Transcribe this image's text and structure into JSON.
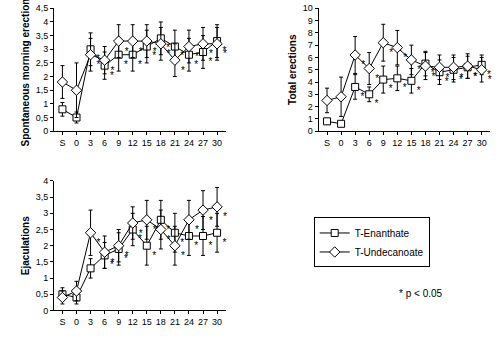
{
  "chart_data": [
    {
      "type": "line",
      "y_label": "Spontaneous morning erections",
      "categories": [
        "S",
        "0",
        "3",
        "6",
        "9",
        "12",
        "15",
        "18",
        "21",
        "24",
        "27",
        "30"
      ],
      "ylim": [
        0,
        4.5
      ],
      "yticks": [
        0,
        {
          "value": 0.5,
          "label": "0,5"
        },
        1,
        {
          "value": 1.5,
          "label": "1,5"
        },
        2,
        {
          "value": 2.5,
          "label": "2,5"
        },
        3,
        {
          "value": 3.5,
          "label": "3,5"
        },
        4,
        {
          "value": 4.5,
          "label": "4,5"
        }
      ],
      "grid": false,
      "series": [
        {
          "name": "T-Enanthate",
          "color": "#000000",
          "marker": "square",
          "values": [
            0.8,
            0.5,
            3.0,
            2.4,
            2.8,
            2.8,
            3.1,
            3.4,
            3.1,
            2.8,
            2.9,
            3.3
          ],
          "errors": [
            0.25,
            0.2,
            0.6,
            0.5,
            0.6,
            0.6,
            0.6,
            0.6,
            0.6,
            0.6,
            0.6,
            0.6
          ],
          "point_labels": [
            null,
            null,
            "*",
            "*",
            "*",
            "*",
            "*",
            "*",
            "*",
            "*",
            "*",
            "*"
          ]
        },
        {
          "name": "T-Undecanoate",
          "color": "#000000",
          "marker": "diamond",
          "values": [
            1.8,
            1.5,
            2.8,
            2.6,
            3.3,
            3.3,
            3.3,
            3.2,
            2.6,
            3.1,
            3.2,
            3.2
          ],
          "errors": [
            0.6,
            1.0,
            0.6,
            0.5,
            0.6,
            0.6,
            0.6,
            0.6,
            0.6,
            0.6,
            0.6,
            0.6
          ],
          "point_labels": [
            null,
            null,
            "*",
            "*",
            "*",
            "*",
            "*",
            "*",
            "*",
            "*",
            "*",
            "*"
          ]
        }
      ]
    },
    {
      "type": "line",
      "y_label": "Total erections",
      "categories": [
        "S",
        "0",
        "3",
        "6",
        "9",
        "12",
        "15",
        "18",
        "21",
        "24",
        "27",
        "30"
      ],
      "ylim": [
        0,
        10
      ],
      "yticks": [
        0,
        1,
        2,
        3,
        4,
        5,
        6,
        7,
        8,
        9,
        10
      ],
      "grid": false,
      "series": [
        {
          "name": "T-Enanthate",
          "color": "#000000",
          "marker": "square",
          "values": [
            0.8,
            0.6,
            3.6,
            3.0,
            4.2,
            4.3,
            4.1,
            5.5,
            4.8,
            5.0,
            5.2,
            5.4
          ],
          "errors": [
            0.2,
            0.2,
            1.0,
            0.6,
            1.1,
            1.0,
            1.0,
            1.0,
            1.0,
            1.0,
            0.9,
            0.8
          ],
          "point_labels": [
            null,
            null,
            "*",
            "*",
            "*",
            "*",
            "*",
            "*",
            "*",
            "*",
            "*",
            "*"
          ]
        },
        {
          "name": "T-Undecanoate",
          "color": "#000000",
          "marker": "diamond",
          "values": [
            2.5,
            2.8,
            6.2,
            5.1,
            7.2,
            6.8,
            5.8,
            5.3,
            5.2,
            5.2,
            5.3,
            5.0
          ],
          "errors": [
            1.0,
            1.6,
            1.5,
            1.3,
            1.5,
            1.4,
            1.2,
            1.1,
            1.0,
            1.0,
            1.0,
            1.0
          ],
          "point_labels": [
            null,
            null,
            "*",
            "*",
            "*",
            "*",
            "*",
            "*",
            "*",
            "*",
            "*",
            "*"
          ]
        }
      ]
    },
    {
      "type": "line",
      "y_label": "Ejaculations",
      "categories": [
        "S",
        "0",
        "3",
        "6",
        "9",
        "12",
        "15",
        "18",
        "21",
        "24",
        "27",
        "30"
      ],
      "ylim": [
        0,
        4
      ],
      "yticks": [
        0,
        {
          "value": 0.5,
          "label": "0,5"
        },
        1,
        {
          "value": 1.5,
          "label": "1,5"
        },
        2,
        {
          "value": 2.5,
          "label": "2,5"
        },
        3,
        {
          "value": 3.5,
          "label": "3,5"
        },
        4
      ],
      "grid": false,
      "series": [
        {
          "name": "T-Enanthate",
          "color": "#000000",
          "marker": "square",
          "values": [
            0.5,
            0.4,
            1.3,
            1.7,
            1.9,
            2.5,
            2.0,
            2.8,
            2.4,
            2.3,
            2.3,
            2.4
          ],
          "errors": [
            0.2,
            0.2,
            0.3,
            0.4,
            0.5,
            0.5,
            0.6,
            0.6,
            0.6,
            0.6,
            0.6,
            0.6
          ],
          "point_labels": [
            null,
            null,
            null,
            "*",
            "*",
            "*",
            "*",
            "*",
            "*",
            "*",
            "*",
            "*"
          ]
        },
        {
          "name": "T-Undecanoate",
          "color": "#000000",
          "marker": "diamond",
          "values": [
            0.4,
            0.6,
            2.4,
            1.8,
            2.0,
            2.7,
            2.8,
            2.5,
            2.0,
            2.8,
            3.1,
            3.2
          ],
          "errors": [
            0.2,
            0.3,
            0.7,
            0.5,
            0.5,
            0.5,
            0.6,
            0.6,
            0.6,
            0.6,
            0.6,
            0.6
          ],
          "point_labels": [
            null,
            null,
            "*",
            "*",
            "*",
            "*",
            "*",
            "*",
            "*",
            "*",
            "*",
            "*"
          ]
        }
      ]
    }
  ],
  "legend_note": "* p < 0.05"
}
